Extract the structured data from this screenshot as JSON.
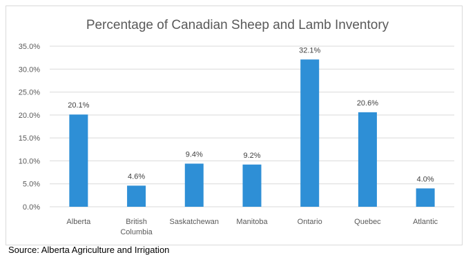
{
  "chart_data": {
    "type": "bar",
    "title": "Percentage of Canadian Sheep and Lamb Inventory",
    "categories": [
      [
        "Alberta"
      ],
      [
        "British",
        "Columbia"
      ],
      [
        "Saskatchewan"
      ],
      [
        "Manitoba"
      ],
      [
        "Ontario"
      ],
      [
        "Quebec"
      ],
      [
        "Atlantic"
      ]
    ],
    "values": [
      20.1,
      4.6,
      9.4,
      9.2,
      32.1,
      20.6,
      4.0
    ],
    "data_labels": [
      "20.1%",
      "4.6%",
      "9.4%",
      "9.2%",
      "32.1%",
      "20.6%",
      "4.0%"
    ],
    "y_ticks": [
      "0.0%",
      "5.0%",
      "10.0%",
      "15.0%",
      "20.0%",
      "25.0%",
      "30.0%",
      "35.0%"
    ],
    "ylim": [
      0,
      35
    ],
    "y_step": 5,
    "grid": true,
    "legend": "none",
    "bar_color": "#2e8fd6",
    "grid_color": "#d9d9d9"
  },
  "source": "Source: Alberta Agriculture and Irrigation"
}
